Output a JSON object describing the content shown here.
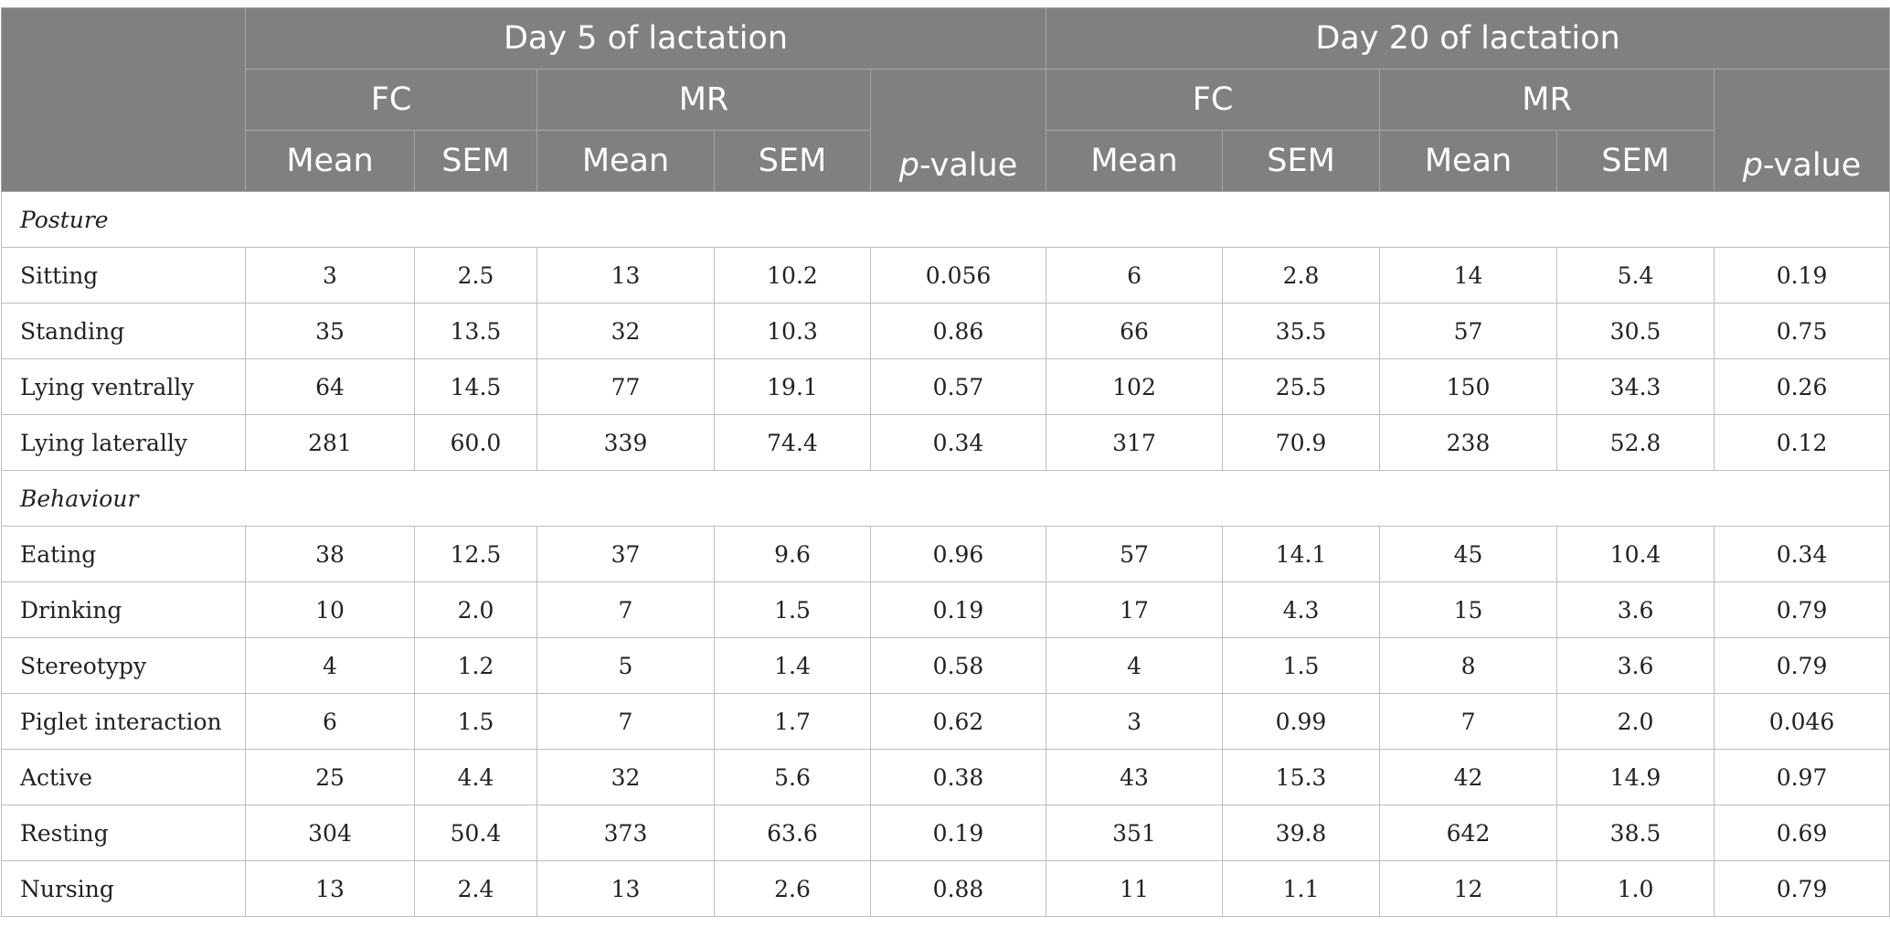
{
  "header": {
    "group1": "Day 5 of lactation",
    "group2": "Day 20 of lactation",
    "fc": "FC",
    "mr": "MR",
    "mean": "Mean",
    "sem": "SEM",
    "p_italic": "p",
    "p_rest": "-value"
  },
  "sections": [
    {
      "title": "Posture",
      "rows": [
        {
          "label": "Sitting",
          "values": [
            "3",
            "2.5",
            "13",
            "10.2",
            "0.056",
            "6",
            "2.8",
            "14",
            "5.4",
            "0.19"
          ]
        },
        {
          "label": "Standing",
          "values": [
            "35",
            "13.5",
            "32",
            "10.3",
            "0.86",
            "66",
            "35.5",
            "57",
            "30.5",
            "0.75"
          ]
        },
        {
          "label": "Lying ventrally",
          "values": [
            "64",
            "14.5",
            "77",
            "19.1",
            "0.57",
            "102",
            "25.5",
            "150",
            "34.3",
            "0.26"
          ]
        },
        {
          "label": "Lying laterally",
          "values": [
            "281",
            "60.0",
            "339",
            "74.4",
            "0.34",
            "317",
            "70.9",
            "238",
            "52.8",
            "0.12"
          ]
        }
      ]
    },
    {
      "title": "Behaviour",
      "rows": [
        {
          "label": "Eating",
          "values": [
            "38",
            "12.5",
            "37",
            "9.6",
            "0.96",
            "57",
            "14.1",
            "45",
            "10.4",
            "0.34"
          ]
        },
        {
          "label": "Drinking",
          "values": [
            "10",
            "2.0",
            "7",
            "1.5",
            "0.19",
            "17",
            "4.3",
            "15",
            "3.6",
            "0.79"
          ]
        },
        {
          "label": "Stereotypy",
          "values": [
            "4",
            "1.2",
            "5",
            "1.4",
            "0.58",
            "4",
            "1.5",
            "8",
            "3.6",
            "0.79"
          ]
        },
        {
          "label": "Piglet interaction",
          "values": [
            "6",
            "1.5",
            "7",
            "1.7",
            "0.62",
            "3",
            "0.99",
            "7",
            "2.0",
            "0.046"
          ]
        },
        {
          "label": "Active",
          "values": [
            "25",
            "4.4",
            "32",
            "5.6",
            "0.38",
            "43",
            "15.3",
            "42",
            "14.9",
            "0.97"
          ]
        },
        {
          "label": "Resting",
          "values": [
            "304",
            "50.4",
            "373",
            "63.6",
            "0.19",
            "351",
            "39.8",
            "642",
            "38.5",
            "0.69"
          ]
        },
        {
          "label": "Nursing",
          "values": [
            "13",
            "2.4",
            "13",
            "2.6",
            "0.88",
            "11",
            "1.1",
            "12",
            "1.0",
            "0.79"
          ]
        }
      ]
    }
  ]
}
